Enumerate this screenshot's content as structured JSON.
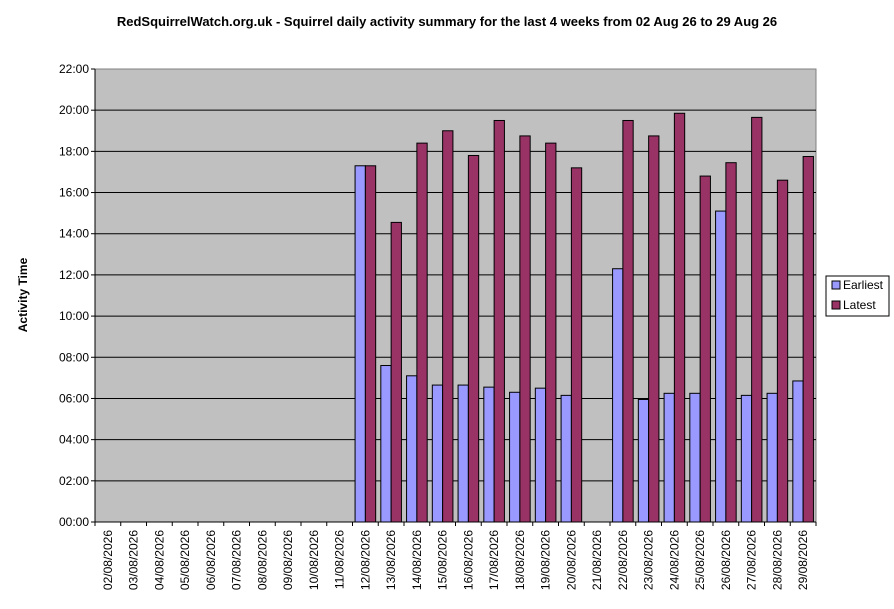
{
  "chart_data": {
    "type": "bar",
    "title": "RedSquirrelWatch.org.uk - Squirrel daily activity summary for the last 4 weeks from 02 Aug 26 to 29 Aug 26",
    "ylabel": "Activity Time",
    "xlabel": "",
    "ylim": [
      0,
      22
    ],
    "y_ticks": [
      "00:00",
      "02:00",
      "04:00",
      "06:00",
      "08:00",
      "10:00",
      "12:00",
      "14:00",
      "16:00",
      "18:00",
      "20:00",
      "22:00"
    ],
    "y_units": "hours",
    "grid": true,
    "legend_position": "right",
    "categories": [
      "02/08/2026",
      "03/08/2026",
      "04/08/2026",
      "05/08/2026",
      "06/08/2026",
      "07/08/2026",
      "08/08/2026",
      "09/08/2026",
      "10/08/2026",
      "11/08/2026",
      "12/08/2026",
      "13/08/2026",
      "14/08/2026",
      "15/08/2026",
      "16/08/2026",
      "17/08/2026",
      "18/08/2026",
      "19/08/2026",
      "20/08/2026",
      "21/08/2026",
      "22/08/2026",
      "23/08/2026",
      "24/08/2026",
      "25/08/2026",
      "26/08/2026",
      "27/08/2026",
      "28/08/2026",
      "29/08/2026"
    ],
    "series": [
      {
        "name": "Earliest",
        "color": "#9999ff",
        "values": [
          null,
          null,
          null,
          null,
          null,
          null,
          null,
          null,
          null,
          null,
          17.3,
          7.6,
          7.1,
          6.65,
          6.65,
          6.55,
          6.3,
          6.5,
          6.15,
          null,
          12.3,
          5.95,
          6.25,
          6.25,
          15.1,
          6.15,
          6.25,
          6.85
        ]
      },
      {
        "name": "Latest",
        "color": "#993366",
        "values": [
          null,
          null,
          null,
          null,
          null,
          null,
          null,
          null,
          null,
          null,
          17.3,
          14.55,
          18.4,
          19.0,
          17.8,
          19.5,
          18.75,
          18.4,
          17.2,
          null,
          19.5,
          18.75,
          19.85,
          16.8,
          17.45,
          19.65,
          16.6,
          17.75
        ]
      }
    ],
    "plot_background": "#c0c0c0"
  }
}
